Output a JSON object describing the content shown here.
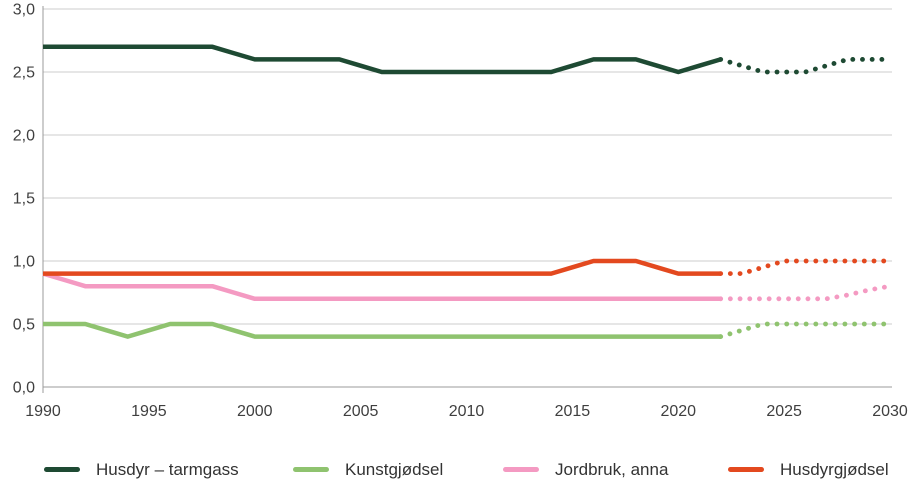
{
  "chart_data": {
    "type": "line",
    "title": "",
    "xlabel": "",
    "ylabel": "",
    "x": [
      1990,
      1991,
      1992,
      1993,
      1994,
      1995,
      1996,
      1997,
      1998,
      1999,
      2000,
      2001,
      2002,
      2003,
      2004,
      2005,
      2006,
      2007,
      2008,
      2009,
      2010,
      2011,
      2012,
      2013,
      2014,
      2015,
      2016,
      2017,
      2018,
      2019,
      2020,
      2021,
      2022,
      2023,
      2024,
      2025,
      2026,
      2027,
      2028,
      2029,
      2030
    ],
    "series": [
      {
        "name": "Husdyr – tarmgass",
        "color": "#1e4a33",
        "values": [
          2.7,
          2.7,
          2.7,
          2.7,
          2.7,
          2.7,
          2.7,
          2.7,
          2.7,
          2.65,
          2.6,
          2.6,
          2.6,
          2.6,
          2.6,
          2.55,
          2.5,
          2.5,
          2.5,
          2.5,
          2.5,
          2.5,
          2.5,
          2.5,
          2.5,
          2.55,
          2.6,
          2.6,
          2.6,
          2.55,
          2.5,
          2.55,
          2.6,
          2.55,
          2.5,
          2.5,
          2.5,
          2.55,
          2.6,
          2.6,
          2.6
        ]
      },
      {
        "name": "Kunstgjødsel",
        "color": "#8fc36f",
        "values": [
          0.5,
          0.5,
          0.5,
          0.45,
          0.4,
          0.45,
          0.5,
          0.5,
          0.5,
          0.45,
          0.4,
          0.4,
          0.4,
          0.4,
          0.4,
          0.4,
          0.4,
          0.4,
          0.4,
          0.4,
          0.4,
          0.4,
          0.4,
          0.4,
          0.4,
          0.4,
          0.4,
          0.4,
          0.4,
          0.4,
          0.4,
          0.4,
          0.4,
          0.45,
          0.5,
          0.5,
          0.5,
          0.5,
          0.5,
          0.5,
          0.5
        ]
      },
      {
        "name": "Jordbruk, anna",
        "color": "#f49ac2",
        "values": [
          0.9,
          0.85,
          0.8,
          0.8,
          0.8,
          0.8,
          0.8,
          0.8,
          0.8,
          0.75,
          0.7,
          0.7,
          0.7,
          0.7,
          0.7,
          0.7,
          0.7,
          0.7,
          0.7,
          0.7,
          0.7,
          0.7,
          0.7,
          0.7,
          0.7,
          0.7,
          0.7,
          0.7,
          0.7,
          0.7,
          0.7,
          0.7,
          0.7,
          0.7,
          0.7,
          0.7,
          0.7,
          0.7,
          0.73,
          0.77,
          0.8
        ]
      },
      {
        "name": "Husdyrgjødsel",
        "color": "#e3491f",
        "values": [
          0.9,
          0.9,
          0.9,
          0.9,
          0.9,
          0.9,
          0.9,
          0.9,
          0.9,
          0.9,
          0.9,
          0.9,
          0.9,
          0.9,
          0.9,
          0.9,
          0.9,
          0.9,
          0.9,
          0.9,
          0.9,
          0.9,
          0.9,
          0.9,
          0.9,
          0.95,
          1.0,
          1.0,
          1.0,
          0.95,
          0.9,
          0.9,
          0.9,
          0.9,
          0.95,
          1.0,
          1.0,
          1.0,
          1.0,
          1.0,
          1.0
        ]
      }
    ],
    "projection_start_year": 2022,
    "projection_style": "dotted",
    "xlim": [
      1990,
      2030
    ],
    "ylim": [
      0,
      3.0
    ],
    "y_ticks": [
      0,
      0.5,
      1.0,
      1.5,
      2.0,
      2.5,
      3.0
    ],
    "y_tick_labels": [
      "0,0",
      "0,5",
      "1,0",
      "1,5",
      "2,0",
      "2,5",
      "3,0"
    ],
    "x_ticks": [
      1990,
      1995,
      2000,
      2005,
      2010,
      2015,
      2020,
      2025,
      2030
    ],
    "x_tick_labels": [
      "1990",
      "1995",
      "2000",
      "2005",
      "2010",
      "2015",
      "2020",
      "2025",
      "2030"
    ],
    "grid": "horizontal",
    "legend_position": "bottom",
    "colors": {
      "gridline": "#cccccc",
      "axis": "#9b9b9b",
      "tick_text": "#3f3f3f"
    }
  }
}
